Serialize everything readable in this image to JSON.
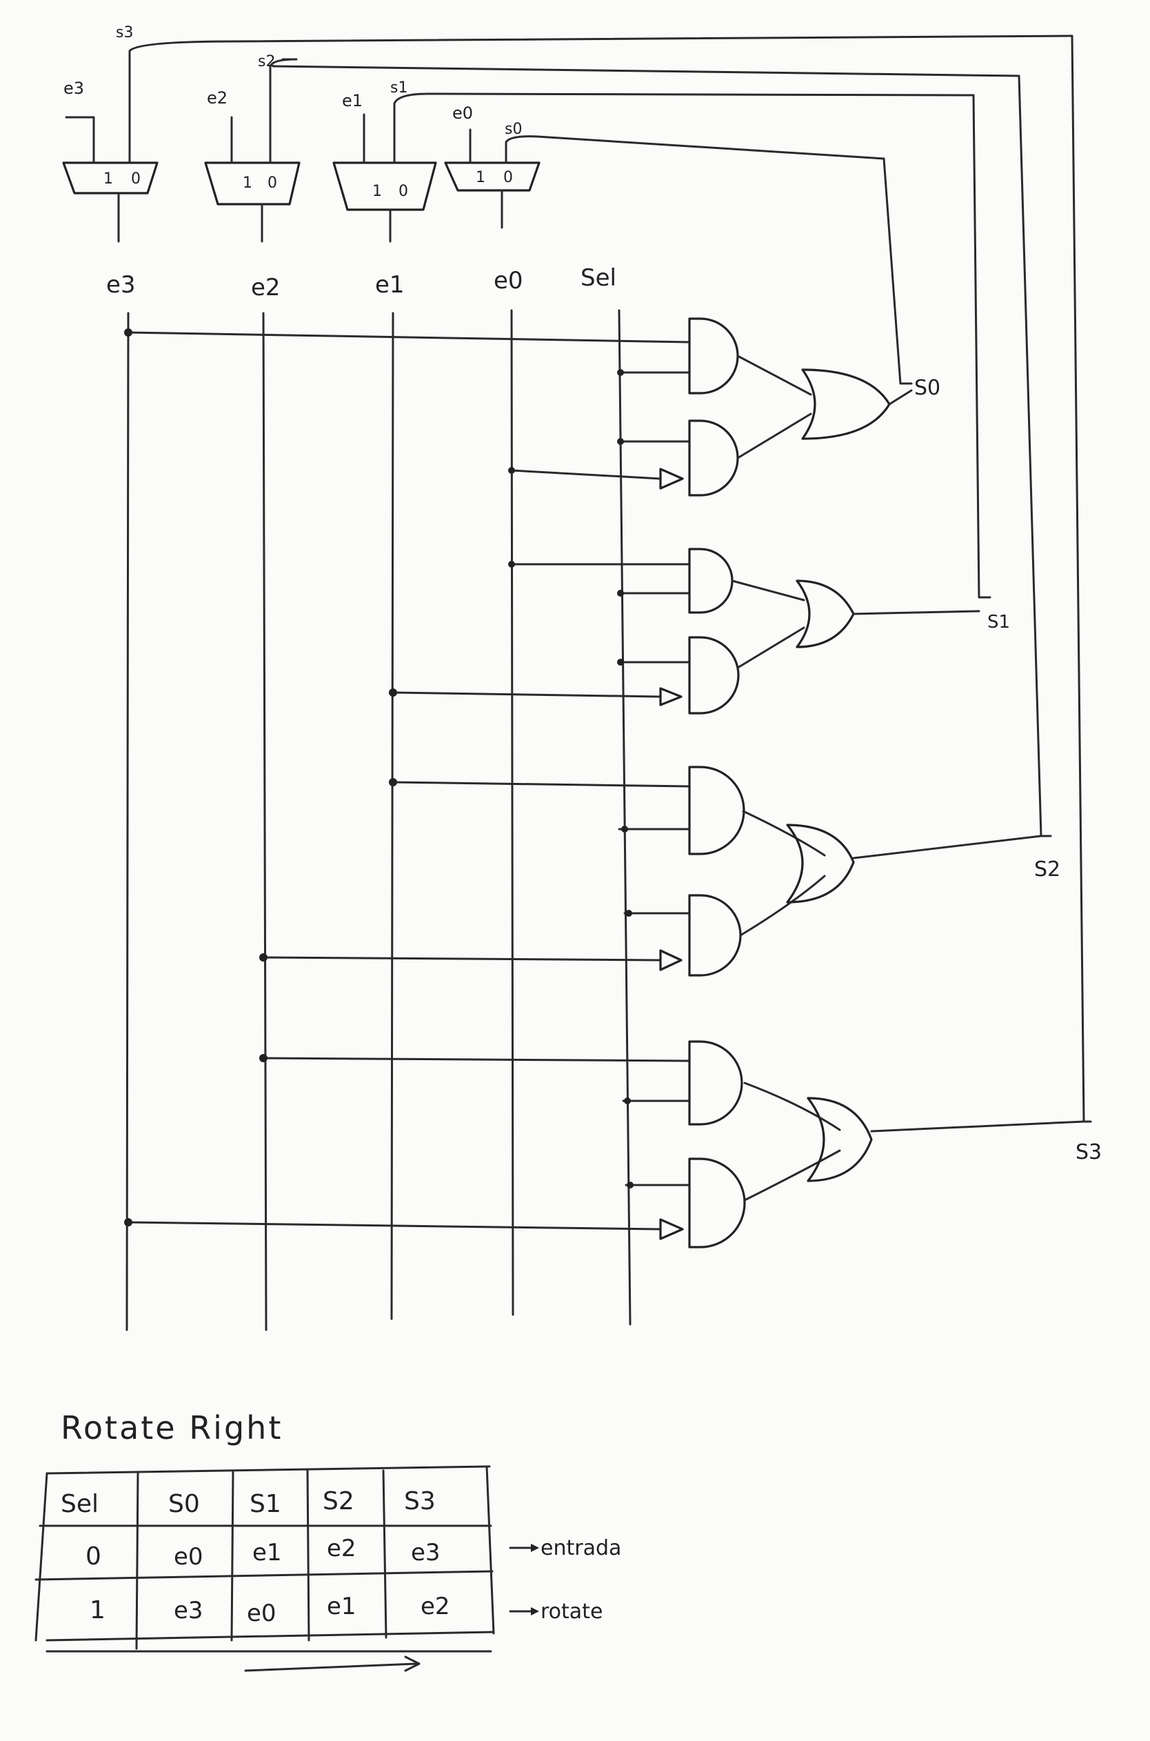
{
  "diagram": {
    "mux_labels": {
      "inputs": [
        "e3",
        "e2",
        "e1",
        "e0"
      ],
      "feedback": [
        "s3",
        "s2",
        "s1",
        "s0"
      ],
      "port_one": "1",
      "port_zero": "0"
    },
    "bus_labels": [
      "e3",
      "e2",
      "e1",
      "e0",
      "Sel"
    ],
    "output_labels": [
      "S0",
      "S1",
      "S2",
      "S3"
    ],
    "title": "Rotate Right",
    "table": {
      "headers": [
        "Sel",
        "S0",
        "S1",
        "S2",
        "S3"
      ],
      "rows": [
        {
          "cells": [
            "0",
            "e0",
            "e1",
            "e2",
            "e3"
          ],
          "note": "entrada"
        },
        {
          "cells": [
            "1",
            "e3",
            "e0",
            "e1",
            "e2"
          ],
          "note": "rotate"
        }
      ]
    }
  },
  "colors": {
    "ink": "#222222",
    "paper": "#fbfbfa"
  }
}
